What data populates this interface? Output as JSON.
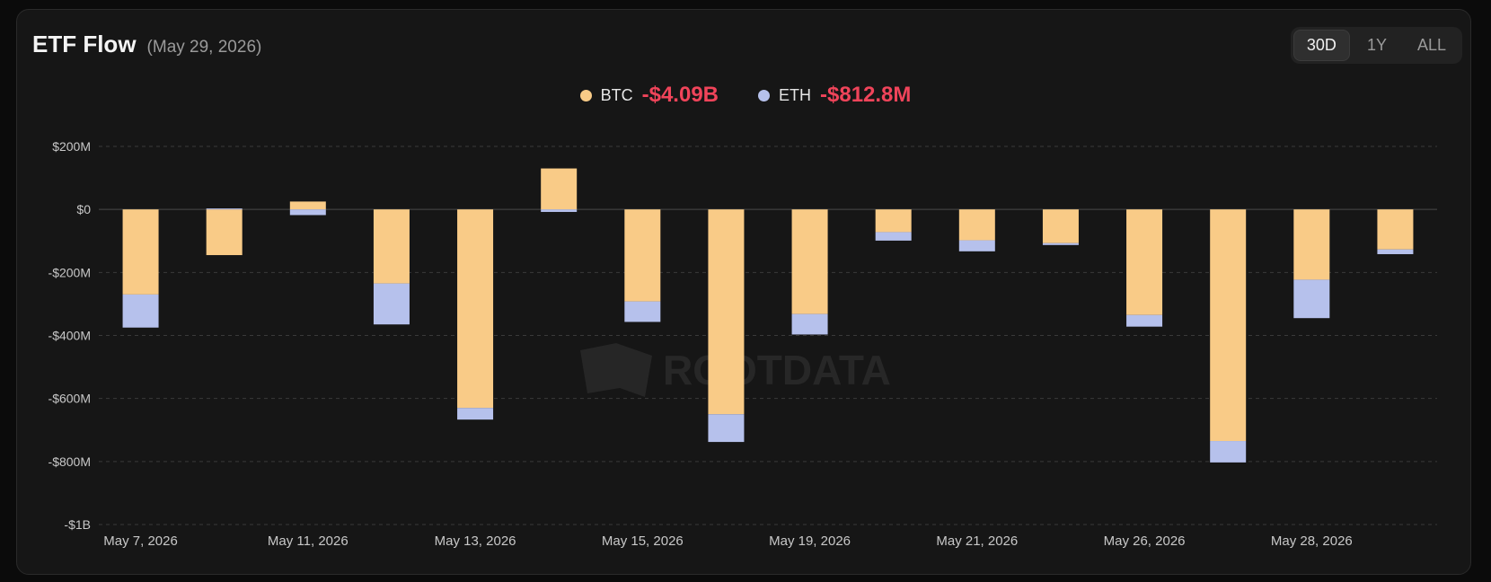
{
  "header": {
    "title": "ETF Flow",
    "date": "(May 29, 2026)"
  },
  "range_options": [
    {
      "label": "30D",
      "active": true
    },
    {
      "label": "1Y",
      "active": false
    },
    {
      "label": "ALL",
      "active": false
    }
  ],
  "colors": {
    "btc": "#f9cb87",
    "eth": "#b6c1ec",
    "negative": "#f0445a",
    "grid": "#3a3a3a",
    "zero": "#4a4a4a"
  },
  "legend": [
    {
      "name": "BTC",
      "value": "-$4.09B"
    },
    {
      "name": "ETH",
      "value": "-$812.8M"
    }
  ],
  "watermark": "ROOTDATA",
  "chart_data": {
    "type": "bar",
    "stacked": true,
    "ylim": [
      -1000,
      200
    ],
    "yticks": [
      {
        "value": 200,
        "label": "$200M"
      },
      {
        "value": 0,
        "label": "$0"
      },
      {
        "value": -200,
        "label": "-$200M"
      },
      {
        "value": -400,
        "label": "-$400M"
      },
      {
        "value": -600,
        "label": "-$600M"
      },
      {
        "value": -800,
        "label": "-$800M"
      },
      {
        "value": -1000,
        "label": "-$1B"
      }
    ],
    "xtick_labels": [
      "May 7, 2026",
      "May 11, 2026",
      "May 13, 2026",
      "May 15, 2026",
      "May 19, 2026",
      "May 21, 2026",
      "May 26, 2026",
      "May 28, 2026"
    ],
    "series": [
      {
        "name": "BTC",
        "values": [
          -270,
          -145,
          25,
          -235,
          -630,
          130,
          -292,
          -650,
          -332,
          -72,
          -98,
          -107,
          -335,
          -735,
          -223,
          -127
        ]
      },
      {
        "name": "ETH",
        "values": [
          -105,
          3,
          -18,
          -130,
          -37,
          -8,
          -65,
          -88,
          -65,
          -27,
          -35,
          -6,
          -37,
          -68,
          -122,
          -15
        ]
      }
    ]
  }
}
